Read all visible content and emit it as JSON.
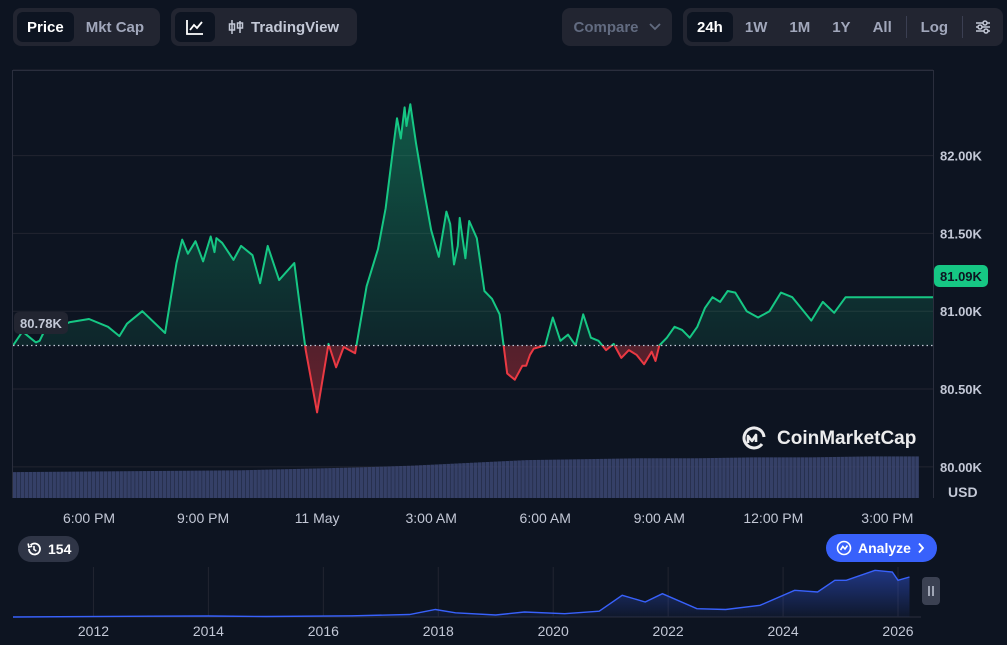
{
  "toolbar": {
    "price_label": "Price",
    "mktcap_label": "Mkt Cap",
    "tradingview_label": "TradingView",
    "compare_label": "Compare",
    "ranges": [
      "24h",
      "1W",
      "1M",
      "1Y",
      "All"
    ],
    "active_range": "24h",
    "log_label": "Log"
  },
  "chart": {
    "current_price_label": "81.09K",
    "open_price_label": "80.78K",
    "currency_label": "USD",
    "watermark_label": "CoinMarketCap",
    "history_count": "154",
    "analyze_label": "Analyze",
    "up_color": "#16c784",
    "down_color": "#ea3943",
    "volume_color": "#3d4873"
  },
  "chart_data": [
    {
      "type": "area",
      "reference_value": 80780,
      "current_value": 81090,
      "ylim": [
        79800,
        82550
      ],
      "y_ticks": [
        80000,
        80500,
        81000,
        81500,
        82000
      ],
      "y_tick_labels": [
        "80.00K",
        "80.50K",
        "81.00K",
        "81.50K",
        "82.00K"
      ],
      "x_ticks": [
        "6:00 PM",
        "9:00 PM",
        "11 May",
        "3:00 AM",
        "6:00 AM",
        "9:00 AM",
        "12:00 PM",
        "3:00 PM"
      ],
      "x_tick_hours": [
        2,
        5,
        8,
        11,
        14,
        17,
        20,
        23
      ],
      "xlim": [
        0,
        24.2
      ],
      "series": [
        {
          "hours": [
            0,
            0.25,
            0.5,
            0.6,
            0.7,
            0.8,
            1.0,
            1.5,
            2.0,
            2.5,
            2.8,
            3.0,
            3.4,
            4.0,
            4.3,
            4.45,
            4.6,
            4.8,
            5.0,
            5.2,
            5.3,
            5.35,
            5.5,
            5.8,
            6.0,
            6.3,
            6.5,
            6.7,
            7.0,
            7.4,
            7.5,
            7.7,
            8.0,
            8.3,
            8.5,
            8.7,
            9.0,
            9.3,
            9.6,
            9.8,
            10.0,
            10.1,
            10.2,
            10.3,
            10.35,
            10.45,
            10.6,
            10.8,
            11.0,
            11.2,
            11.4,
            11.5,
            11.6,
            11.7,
            11.75,
            11.9,
            12.0,
            12.2,
            12.4,
            12.6,
            12.8,
            13.0,
            13.2,
            13.4,
            13.5,
            13.6,
            13.7,
            13.85,
            14.0,
            14.2,
            14.4,
            14.6,
            14.8,
            15.0,
            15.2,
            15.4,
            15.6,
            15.8,
            16.0,
            16.2,
            16.4,
            16.6,
            16.8,
            16.9,
            17.0,
            17.2,
            17.4,
            17.6,
            17.8,
            18.0,
            18.2,
            18.4,
            18.6,
            18.8,
            19.0,
            19.3,
            19.6,
            19.9,
            20.2,
            20.5,
            20.8,
            21.0,
            21.3,
            21.6,
            21.9,
            22.2,
            22.5,
            22.8,
            23.1,
            23.4,
            23.7,
            24.0,
            24.2
          ],
          "values": [
            80780,
            80870,
            80820,
            80800,
            80810,
            80860,
            80880,
            80930,
            80950,
            80900,
            80840,
            80920,
            81000,
            80860,
            81310,
            81460,
            81370,
            81450,
            81320,
            81480,
            81380,
            81470,
            81440,
            81330,
            81420,
            81360,
            81180,
            81420,
            81200,
            81310,
            81120,
            80750,
            80350,
            80790,
            80640,
            80770,
            80730,
            81160,
            81400,
            81660,
            82050,
            82240,
            82110,
            82310,
            82190,
            82330,
            82080,
            81790,
            81520,
            81350,
            81640,
            81560,
            81300,
            81420,
            81600,
            81340,
            81580,
            81470,
            81130,
            81080,
            80980,
            80600,
            80560,
            80650,
            80650,
            80720,
            80760,
            80770,
            80780,
            80960,
            80810,
            80850,
            80780,
            80980,
            80830,
            80810,
            80750,
            80790,
            80700,
            80750,
            80720,
            80660,
            80740,
            80680,
            80780,
            80830,
            80900,
            80880,
            80830,
            80900,
            81020,
            81090,
            81060,
            81130,
            81120,
            81000,
            80960,
            81000,
            81120,
            81090,
            81000,
            80940,
            81060,
            80990,
            81090,
            81090,
            81090,
            81090,
            81090,
            81090,
            81090,
            81090,
            81090
          ]
        }
      ],
      "volume": {
        "hours": [
          0,
          3,
          6,
          9,
          10.5,
          12,
          13.5,
          15,
          16.5,
          18,
          19.5,
          21,
          22.5,
          24.2
        ],
        "values": [
          28,
          29,
          30,
          33,
          35,
          38,
          41,
          42,
          43,
          43,
          44,
          44,
          45,
          45
        ]
      }
    },
    {
      "type": "area",
      "x_ticks": [
        "2012",
        "2014",
        "2016",
        "2018",
        "2020",
        "2022",
        "2024",
        "2026"
      ],
      "x_tick_years": [
        2012,
        2014,
        2016,
        2018,
        2020,
        2022,
        2024,
        2026
      ],
      "xlim": [
        2010.6,
        2026.4
      ],
      "series": [
        {
          "years": [
            2010.6,
            2013.0,
            2014.0,
            2015.0,
            2016.5,
            2017.5,
            2017.95,
            2018.3,
            2019.0,
            2019.5,
            2020.2,
            2020.8,
            2021.2,
            2021.6,
            2021.9,
            2022.5,
            2023.0,
            2023.6,
            2024.2,
            2024.6,
            2024.9,
            2025.1,
            2025.6,
            2025.9,
            2026.0,
            2026.2
          ],
          "values": [
            0,
            0.5,
            0.6,
            0.3,
            0.7,
            1.5,
            4.5,
            2.5,
            1.2,
            3.0,
            2.0,
            3.5,
            13,
            9,
            14,
            5,
            4.5,
            7,
            16,
            15,
            22,
            22,
            28,
            27,
            22,
            24
          ]
        }
      ]
    }
  ]
}
